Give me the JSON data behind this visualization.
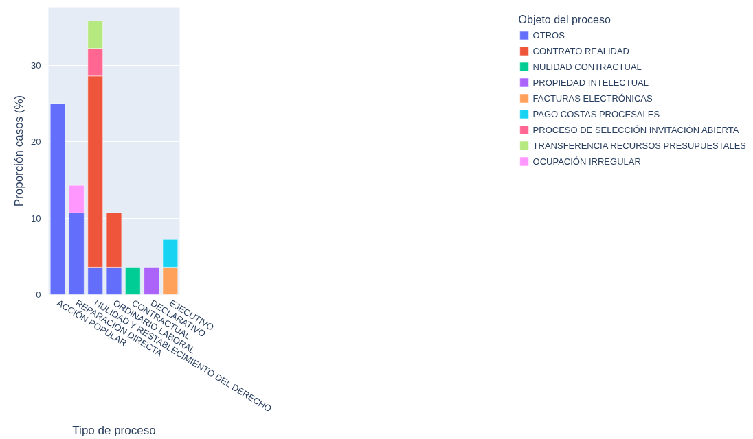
{
  "chart_data": {
    "type": "bar",
    "stacked": true,
    "xlabel": "Tipo de proceso",
    "ylabel": "Proporción casos (%)",
    "legend_title": "Objeto del proceso",
    "legend": "right",
    "grid": "y",
    "categories": [
      "ACCIÓN POPULAR",
      "REPARACIÓN DIRECTA",
      "NULIDAD Y RESTABLECIMIENTO DEL DERECHO",
      "ORDINARIO LABORAL",
      "CONTRACTUAL",
      "DECLARATIVO",
      "EJECUTIVO"
    ],
    "ylim": [
      0,
      37.6
    ],
    "yticks": [
      0,
      10,
      20,
      30
    ],
    "series": [
      {
        "name": "OTROS",
        "color": "#636efa",
        "values": [
          25.0,
          10.7,
          3.6,
          3.6,
          null,
          null,
          null
        ]
      },
      {
        "name": "CONTRATO REALIDAD",
        "color": "#ef553b",
        "values": [
          null,
          null,
          25.0,
          7.1,
          null,
          null,
          null
        ]
      },
      {
        "name": "NULIDAD CONTRACTUAL",
        "color": "#00cc96",
        "values": [
          null,
          null,
          null,
          null,
          3.6,
          null,
          null
        ]
      },
      {
        "name": "PROPIEDAD INTELECTUAL",
        "color": "#ab63fa",
        "values": [
          null,
          null,
          null,
          null,
          null,
          3.6,
          null
        ]
      },
      {
        "name": "FACTURAS ELECTRÓNICAS",
        "color": "#ffa15a",
        "values": [
          null,
          null,
          null,
          null,
          null,
          null,
          3.6
        ]
      },
      {
        "name": "PAGO COSTAS PROCESALES",
        "color": "#19d3f3",
        "values": [
          null,
          null,
          null,
          null,
          null,
          null,
          3.6
        ]
      },
      {
        "name": "PROCESO DE SELECCIÓN INVITACIÓN ABIERTA",
        "color": "#ff6692",
        "values": [
          null,
          null,
          3.6,
          null,
          null,
          null,
          null
        ]
      },
      {
        "name": "TRANSFERENCIA RECURSOS PRESUPUESTALES",
        "color": "#b6e880",
        "values": [
          null,
          null,
          3.6,
          null,
          null,
          null,
          null
        ]
      },
      {
        "name": "OCUPACIÓN IRREGULAR",
        "color": "#ff97ff",
        "values": [
          null,
          3.6,
          null,
          null,
          null,
          null,
          null
        ]
      }
    ]
  }
}
